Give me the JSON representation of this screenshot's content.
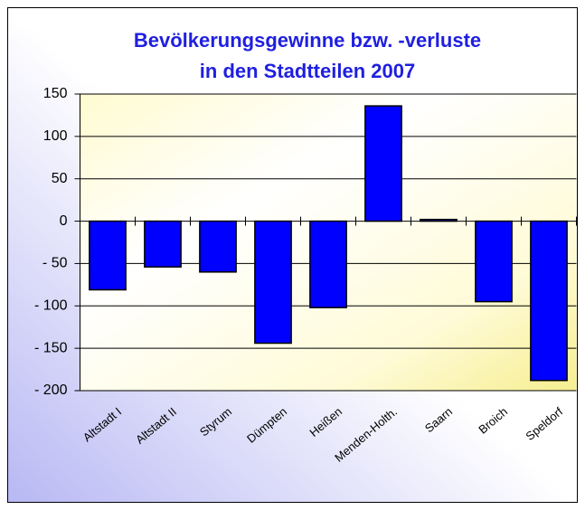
{
  "chart_data": {
    "type": "bar",
    "title": [
      "Bevölkerungsgewinne bzw. -verluste",
      "in den Stadtteilen 2007"
    ],
    "categories": [
      "Altstadt I",
      "Altstadt II",
      "Styrum",
      "Dümpten",
      "Heißen",
      "Menden-Holth.",
      "Saarn",
      "Broich",
      "Speldorf"
    ],
    "values": [
      -81,
      -54,
      -60,
      -144,
      -102,
      136,
      2,
      -95,
      -188
    ],
    "color": "#0000ff",
    "ylim": [
      -200,
      150
    ],
    "yticks": [
      150,
      100,
      50,
      0,
      {
        "value": -50,
        "label": "- 50"
      },
      {
        "value": -100,
        "label": "- 100"
      },
      {
        "value": -150,
        "label": "- 150"
      },
      {
        "value": -200,
        "label": "- 200"
      }
    ],
    "grid": true
  }
}
